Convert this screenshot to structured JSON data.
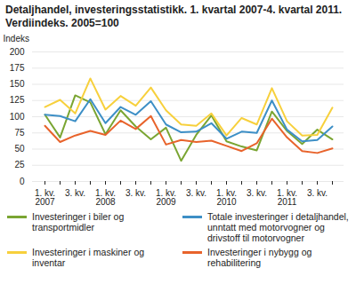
{
  "chart_data": {
    "type": "line",
    "title": "Detaljhandel, investeringsstatistikk. 1. kvartal 2007-4. kvartal 2011. Verdiindeks. 2005=100",
    "y_label": "Indeks",
    "categories": [
      "1. kv.\n2007",
      null,
      "3. kv.",
      null,
      "1. kv.\n2008",
      null,
      "3. kv.",
      null,
      "1. kv.\n2009",
      null,
      "3. kv.",
      null,
      "1. kv.\n2010",
      null,
      "3. kv.",
      null,
      "1. kv.\n2011",
      null,
      "3. kv.",
      null
    ],
    "series": [
      {
        "name": "Investeringer i biler og transportmidler",
        "color": "#7aa532",
        "values": [
          103,
          68,
          133,
          122,
          73,
          110,
          85,
          65,
          83,
          32,
          72,
          102,
          62,
          54,
          48,
          108,
          78,
          58,
          80,
          65
        ]
      },
      {
        "name": "Totale investeringer i detaljhandel, unntatt med motorvogner og drivstoff til motorvogner",
        "color": "#3d8fc6",
        "values": [
          103,
          101,
          93,
          127,
          90,
          115,
          103,
          124,
          88,
          76,
          77,
          90,
          66,
          77,
          75,
          125,
          80,
          62,
          64,
          85
        ]
      },
      {
        "name": "Investeringer i maskiner og inventar",
        "color": "#f7d03c",
        "values": [
          115,
          126,
          105,
          159,
          111,
          132,
          117,
          145,
          110,
          88,
          86,
          105,
          71,
          98,
          88,
          144,
          93,
          71,
          72,
          114
        ]
      },
      {
        "name": "Investeringer i nybygg og rehabilitering",
        "color": "#e8632b",
        "values": [
          86,
          61,
          71,
          78,
          72,
          94,
          81,
          101,
          57,
          64,
          61,
          63,
          55,
          47,
          59,
          97,
          68,
          47,
          44,
          51
        ]
      }
    ],
    "ylim": [
      0,
      200
    ],
    "yticks": [
      0,
      25,
      50,
      75,
      100,
      125,
      150,
      175,
      200
    ],
    "grid": true,
    "legend": "bottom"
  }
}
